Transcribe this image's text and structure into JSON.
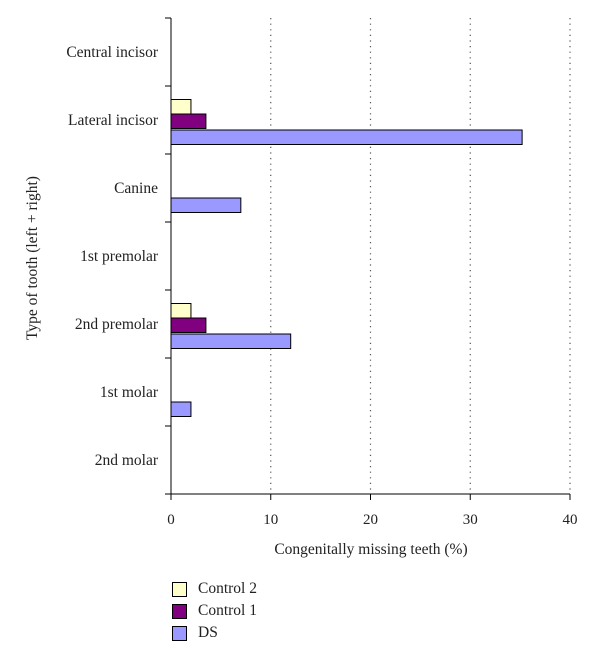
{
  "chart_data": {
    "type": "bar",
    "orientation": "horizontal",
    "categories": [
      "Central incisor",
      "Lateral incisor",
      "Canine",
      "1st premolar",
      "2nd premolar",
      "1st molar",
      "2nd molar"
    ],
    "series": [
      {
        "name": "Control 2",
        "color": "#FFFFCC",
        "values": [
          0,
          2,
          0,
          0,
          2,
          0,
          0
        ]
      },
      {
        "name": "Control 1",
        "color": "#800080",
        "values": [
          0,
          3.5,
          0,
          0,
          3.5,
          0,
          0
        ]
      },
      {
        "name": "DS",
        "color": "#9999FF",
        "values": [
          0,
          35.2,
          7,
          0,
          12,
          2,
          0
        ]
      }
    ],
    "xlabel": "Congenitally missing teeth (%)",
    "ylabel": "Type of tooth (left + right)",
    "xlim": [
      0,
      40
    ],
    "xticks": [
      0,
      10,
      20,
      30,
      40
    ],
    "grid": "vertical dotted",
    "legend_position": "bottom-left"
  }
}
